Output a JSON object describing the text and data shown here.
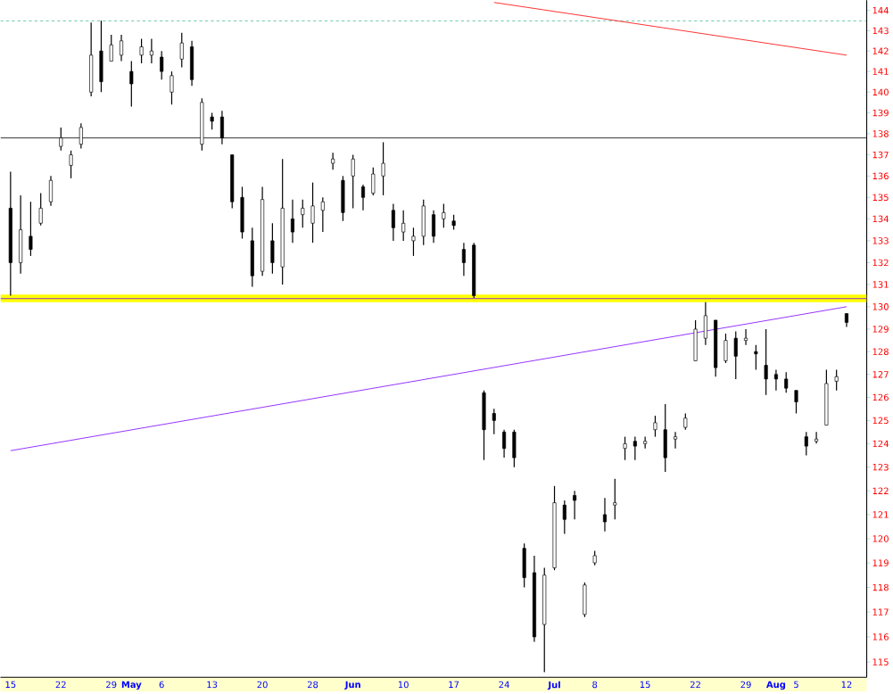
{
  "chart_data": {
    "type": "candlestick",
    "log": true,
    "grid": false,
    "categories": [
      "15",
      null,
      null,
      null,
      null,
      "22",
      null,
      null,
      null,
      null,
      "29",
      null,
      "May",
      null,
      null,
      "6",
      null,
      null,
      null,
      null,
      "13",
      null,
      null,
      null,
      null,
      "20",
      null,
      null,
      null,
      null,
      "28",
      null,
      null,
      null,
      "Jun",
      null,
      null,
      null,
      null,
      "10",
      null,
      null,
      null,
      null,
      "17",
      null,
      null,
      null,
      null,
      "24",
      null,
      null,
      null,
      null,
      "Jul",
      null,
      null,
      null,
      "8",
      null,
      null,
      null,
      null,
      "15",
      null,
      null,
      null,
      null,
      "22",
      null,
      null,
      null,
      null,
      "29",
      null,
      null,
      "Aug",
      null,
      "5",
      null,
      null,
      null,
      null,
      "12"
    ],
    "ohlc": [
      [
        134.5,
        136.2,
        130.5,
        132.0
      ],
      [
        132.0,
        135.1,
        131.5,
        133.5
      ],
      [
        133.2,
        134.8,
        132.3,
        132.6
      ],
      [
        133.8,
        135.2,
        133.7,
        134.5
      ],
      [
        134.8,
        136.0,
        134.6,
        135.8
      ],
      [
        137.4,
        138.3,
        137.2,
        137.8
      ],
      [
        136.5,
        137.2,
        135.9,
        137.0
      ],
      [
        137.5,
        138.5,
        137.3,
        138.3
      ],
      [
        140.0,
        143.4,
        139.8,
        141.8
      ],
      [
        142.0,
        143.5,
        140.0,
        140.5
      ],
      [
        141.5,
        142.8,
        141.5,
        142.3
      ],
      [
        141.8,
        142.8,
        141.5,
        142.5
      ],
      [
        141.0,
        141.5,
        139.3,
        140.4
      ],
      [
        141.8,
        142.6,
        141.4,
        142.2
      ],
      [
        141.8,
        142.6,
        141.4,
        142.0
      ],
      [
        141.7,
        142.0,
        140.6,
        141.0
      ],
      [
        140.0,
        141.0,
        139.4,
        140.8
      ],
      [
        141.6,
        142.9,
        141.2,
        142.4
      ],
      [
        142.2,
        142.5,
        140.3,
        140.6
      ],
      [
        137.5,
        139.7,
        137.2,
        139.5
      ],
      [
        138.8,
        139.0,
        138.2,
        138.6
      ],
      [
        138.8,
        139.1,
        137.5,
        137.8
      ],
      [
        137.0,
        137.0,
        134.5,
        134.8
      ],
      [
        135.0,
        135.5,
        133.1,
        133.4
      ],
      [
        133.0,
        133.6,
        130.9,
        131.4
      ],
      [
        131.6,
        135.5,
        131.4,
        134.9
      ],
      [
        133.0,
        133.8,
        131.5,
        132.0
      ],
      [
        131.8,
        136.8,
        131.0,
        134.5
      ],
      [
        134.0,
        134.9,
        132.9,
        133.4
      ],
      [
        134.2,
        134.9,
        133.6,
        134.5
      ],
      [
        133.8,
        135.7,
        132.9,
        134.6
      ],
      [
        134.4,
        135.0,
        133.4,
        134.8
      ],
      [
        136.6,
        137.1,
        136.3,
        136.8
      ],
      [
        135.8,
        136.0,
        133.9,
        134.3
      ],
      [
        136.0,
        137.0,
        134.5,
        136.8
      ],
      [
        135.5,
        135.6,
        134.4,
        135.0
      ],
      [
        135.2,
        136.4,
        135.1,
        136.1
      ],
      [
        136.0,
        137.6,
        135.1,
        136.6
      ],
      [
        134.4,
        134.7,
        133.0,
        133.6
      ],
      [
        133.4,
        134.4,
        133.0,
        133.8
      ],
      [
        133.0,
        133.6,
        132.3,
        133.2
      ],
      [
        133.2,
        134.9,
        132.8,
        134.6
      ],
      [
        134.2,
        134.4,
        132.9,
        133.2
      ],
      [
        134.0,
        134.7,
        133.6,
        134.3
      ],
      [
        133.9,
        134.2,
        133.5,
        133.7
      ],
      [
        132.6,
        132.9,
        131.4,
        132.0
      ],
      [
        132.8,
        132.9,
        130.4,
        130.5
      ],
      [
        126.2,
        126.3,
        123.3,
        124.6
      ],
      [
        125.3,
        125.5,
        124.4,
        125.0
      ],
      [
        124.5,
        124.6,
        123.4,
        123.8
      ],
      [
        124.5,
        124.6,
        123.0,
        123.4
      ],
      [
        119.6,
        119.8,
        118.0,
        118.4
      ],
      [
        118.6,
        119.3,
        115.8,
        116.0
      ],
      [
        116.5,
        118.8,
        114.6,
        118.5
      ],
      [
        118.8,
        122.2,
        118.7,
        121.5
      ],
      [
        121.4,
        121.6,
        120.2,
        120.8
      ],
      [
        121.8,
        122.0,
        120.8,
        121.6
      ],
      [
        116.9,
        118.2,
        116.8,
        118.1
      ],
      [
        119.0,
        119.5,
        118.9,
        119.3
      ],
      [
        121.0,
        121.7,
        120.3,
        120.7
      ],
      [
        121.4,
        122.5,
        120.8,
        121.5
      ],
      [
        123.8,
        124.3,
        123.3,
        124.0
      ],
      [
        124.1,
        124.3,
        123.3,
        123.9
      ],
      [
        124.0,
        124.3,
        123.8,
        124.1
      ],
      [
        124.6,
        125.2,
        124.3,
        124.9
      ],
      [
        124.6,
        125.7,
        122.8,
        123.4
      ],
      [
        124.2,
        124.5,
        123.8,
        124.3
      ],
      [
        124.7,
        125.3,
        124.6,
        125.1
      ],
      [
        127.6,
        129.4,
        127.6,
        129.0
      ],
      [
        128.6,
        130.2,
        128.3,
        129.6
      ],
      [
        129.4,
        129.4,
        126.9,
        127.3
      ],
      [
        127.6,
        128.8,
        127.5,
        128.5
      ],
      [
        128.6,
        128.9,
        126.8,
        127.8
      ],
      [
        128.5,
        129.0,
        128.3,
        128.6
      ],
      [
        128.0,
        128.3,
        127.2,
        127.9
      ],
      [
        127.4,
        129.0,
        126.1,
        126.8
      ],
      [
        127.0,
        127.2,
        126.3,
        126.8
      ],
      [
        126.8,
        127.1,
        126.2,
        126.4
      ],
      [
        126.3,
        126.3,
        125.3,
        125.8
      ],
      [
        124.3,
        124.5,
        123.5,
        123.9
      ],
      [
        124.1,
        124.5,
        124.0,
        124.2
      ],
      [
        124.8,
        127.2,
        124.8,
        126.6
      ],
      [
        126.7,
        127.2,
        126.3,
        126.9
      ],
      [
        129.7,
        129.7,
        129.1,
        129.3
      ]
    ],
    "series": [
      {
        "type": "line",
        "color": "#ff0000",
        "values": [
          null,
          null,
          null,
          null,
          null,
          null,
          null,
          null,
          null,
          null,
          null,
          null,
          null,
          null,
          null,
          null,
          null,
          null,
          null,
          null,
          null,
          null,
          null,
          null,
          null,
          null,
          null,
          null,
          null,
          null,
          null,
          null,
          null,
          null,
          null,
          null,
          null,
          null,
          null,
          null,
          null,
          null,
          null,
          null,
          null,
          null,
          null,
          null,
          144.4,
          null,
          null,
          null,
          null,
          null,
          null,
          null,
          null,
          null,
          null,
          null,
          null,
          null,
          null,
          null,
          null,
          null,
          null,
          null,
          null,
          null,
          null,
          null,
          null,
          null,
          null,
          null,
          null,
          null,
          null,
          null,
          null,
          null,
          null,
          141.8
        ]
      },
      {
        "type": "line",
        "color": "#7b00ff",
        "values": [
          123.7,
          null,
          null,
          null,
          null,
          null,
          null,
          null,
          null,
          null,
          null,
          null,
          null,
          null,
          null,
          null,
          null,
          null,
          null,
          null,
          null,
          null,
          null,
          null,
          null,
          null,
          null,
          null,
          null,
          null,
          null,
          null,
          null,
          null,
          null,
          null,
          null,
          null,
          null,
          null,
          null,
          null,
          null,
          null,
          null,
          null,
          null,
          null,
          null,
          null,
          null,
          null,
          null,
          null,
          null,
          null,
          null,
          null,
          null,
          null,
          null,
          null,
          null,
          null,
          null,
          null,
          null,
          null,
          null,
          null,
          null,
          null,
          null,
          null,
          null,
          null,
          null,
          null,
          null,
          null,
          null,
          null,
          null,
          130.0
        ]
      }
    ],
    "ref_lines": [
      {
        "axis": "y",
        "value": 143.5,
        "color": "#00a070",
        "line_style": "dotted"
      },
      {
        "axis": "y",
        "value": 137.8,
        "color": "#000000",
        "line_style": "solid"
      },
      {
        "axis": "y",
        "value": 130.37,
        "color": "#7b00ff",
        "line_style": "solid"
      }
    ],
    "bands": [
      {
        "axis": "y",
        "from": 130.2,
        "to": 130.55,
        "color": "#ffff00"
      }
    ],
    "ylim": [
      114.4,
      144.5
    ],
    "yticks": [
      115,
      116,
      117,
      118,
      119,
      120,
      121,
      122,
      123,
      124,
      125,
      126,
      127,
      128,
      129,
      130,
      131,
      132,
      133,
      134,
      135,
      136,
      137,
      138,
      139,
      140,
      141,
      142,
      143,
      144
    ]
  }
}
